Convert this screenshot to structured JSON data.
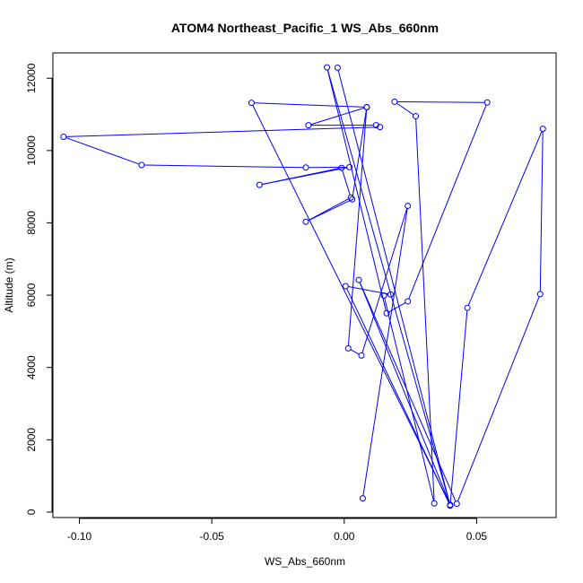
{
  "chart_data": {
    "type": "line",
    "title": "ATOM4 Northeast_Pacific_1 WS_Abs_660nm",
    "xlabel": "WS_Abs_660nm",
    "ylabel": "Altitude (m)",
    "xlim": [
      -0.11,
      0.08
    ],
    "ylim": [
      -150,
      12700
    ],
    "x_ticks": [
      -0.1,
      -0.05,
      0.0,
      0.05
    ],
    "x_tick_labels": [
      "-0.10",
      "-0.05",
      "0.00",
      "0.05"
    ],
    "y_ticks": [
      0,
      2000,
      4000,
      6000,
      8000,
      10000,
      12000
    ],
    "y_tick_labels": [
      "0",
      "2000",
      "4000",
      "6000",
      "8000",
      "10000",
      "12000"
    ],
    "grid": false,
    "series": [
      {
        "color": "#0000ff",
        "marker": "open-circle",
        "x": [
          0.007,
          0.024,
          0.0065,
          0.0015,
          0.0085,
          -0.0135,
          0.012,
          0.0135,
          -0.106,
          -0.0765,
          -0.0145,
          0.002,
          -0.032,
          -0.001,
          0.0025,
          -0.0145,
          0.003,
          0.0085,
          -0.035,
          0.04,
          0.0055,
          0.0425,
          0.074,
          0.075,
          0.0465,
          0.04,
          0.0005,
          0.0175,
          0.015,
          0.034,
          0.027,
          0.019,
          0.054,
          0.024,
          0.016,
          -0.0065,
          0.04,
          -0.0025
        ],
        "y": [
          380,
          8470,
          4330,
          4530,
          11200,
          10700,
          10700,
          10650,
          10380,
          9600,
          9530,
          9540,
          9050,
          9520,
          8700,
          8030,
          8650,
          11200,
          11320,
          200,
          6420,
          230,
          6030,
          10600,
          5650,
          180,
          6250,
          6020,
          5990,
          240,
          10950,
          11350,
          11330,
          5830,
          5500,
          12300,
          180,
          12290
        ]
      }
    ]
  }
}
